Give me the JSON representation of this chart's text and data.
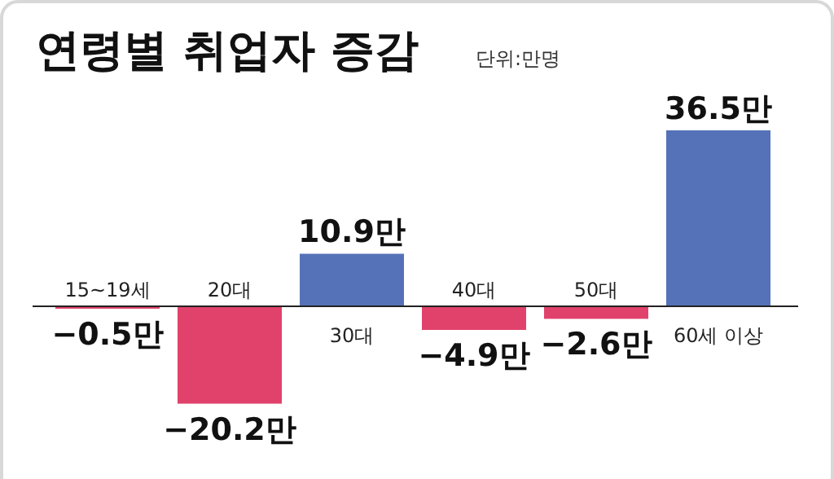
{
  "chart_data": {
    "type": "bar",
    "title": "연령별 취업자 증감",
    "subtitle": "단위:만명",
    "categories": [
      "15~19세",
      "20대",
      "30대",
      "40대",
      "50대",
      "60세 이상"
    ],
    "values": [
      -0.5,
      -20.2,
      10.9,
      -4.9,
      -2.6,
      36.5
    ],
    "colors": [
      "#e0426b",
      "#e0426b",
      "#5572b8",
      "#e0426b",
      "#e0426b",
      "#5572b8"
    ],
    "value_labels": [
      "−0.5만",
      "−20.2만",
      "10.9만",
      "−4.9만",
      "−2.6만",
      "36.5만"
    ]
  }
}
